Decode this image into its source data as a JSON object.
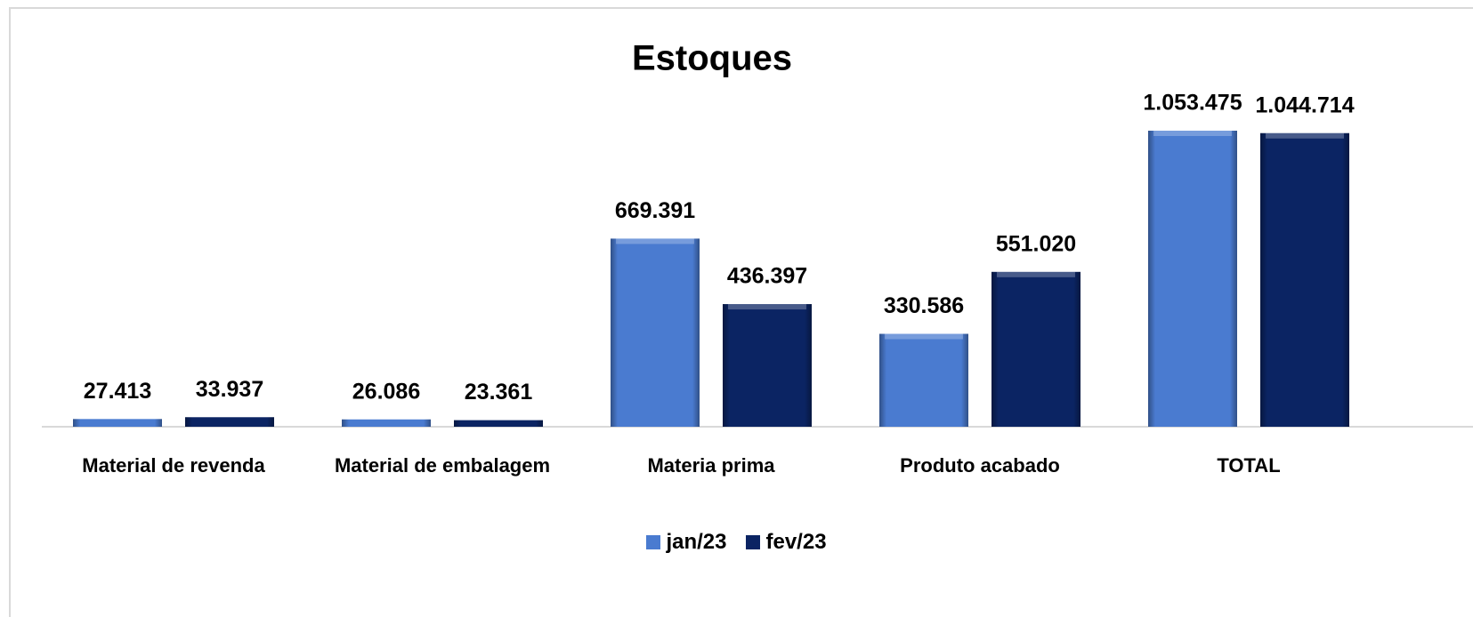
{
  "chart_data": {
    "type": "bar",
    "title": "Estoques",
    "categories": [
      "Material de revenda",
      "Material de embalagem",
      "Materia prima",
      "Produto acabado",
      "TOTAL"
    ],
    "series": [
      {
        "name": "jan/23",
        "color": "#4a7bd0",
        "values": [
          27413,
          26086,
          669391,
          330586,
          1053475
        ],
        "value_labels": [
          "27.413",
          "26.086",
          "669.391",
          "330.586",
          "1.053.475"
        ]
      },
      {
        "name": "fev/23",
        "color": "#0b2463",
        "values": [
          33937,
          23361,
          436397,
          551020,
          1044714
        ],
        "value_labels": [
          "33.937",
          "23.361",
          "436.397",
          "551.020",
          "1.044.714"
        ]
      }
    ],
    "legend": "bottom"
  }
}
